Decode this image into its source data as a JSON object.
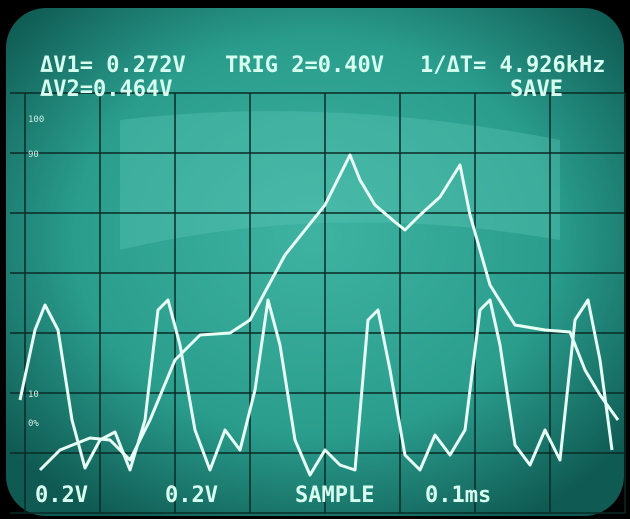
{
  "readouts": {
    "delta_v1": "ΔV1= 0.272V",
    "trigger": "TRIG 2=0.40V",
    "frequency": "1/ΔT= 4.926kHz",
    "delta_v2": "ΔV2=0.464V",
    "mode": "SAVE"
  },
  "graticule_labels": [
    "100",
    "90",
    "10",
    "0%"
  ],
  "footer": {
    "ch1_scale": "0.2V",
    "ch2_scale": "0.2V",
    "acquisition": "SAMPLE",
    "time_scale": "0.1ms"
  }
}
